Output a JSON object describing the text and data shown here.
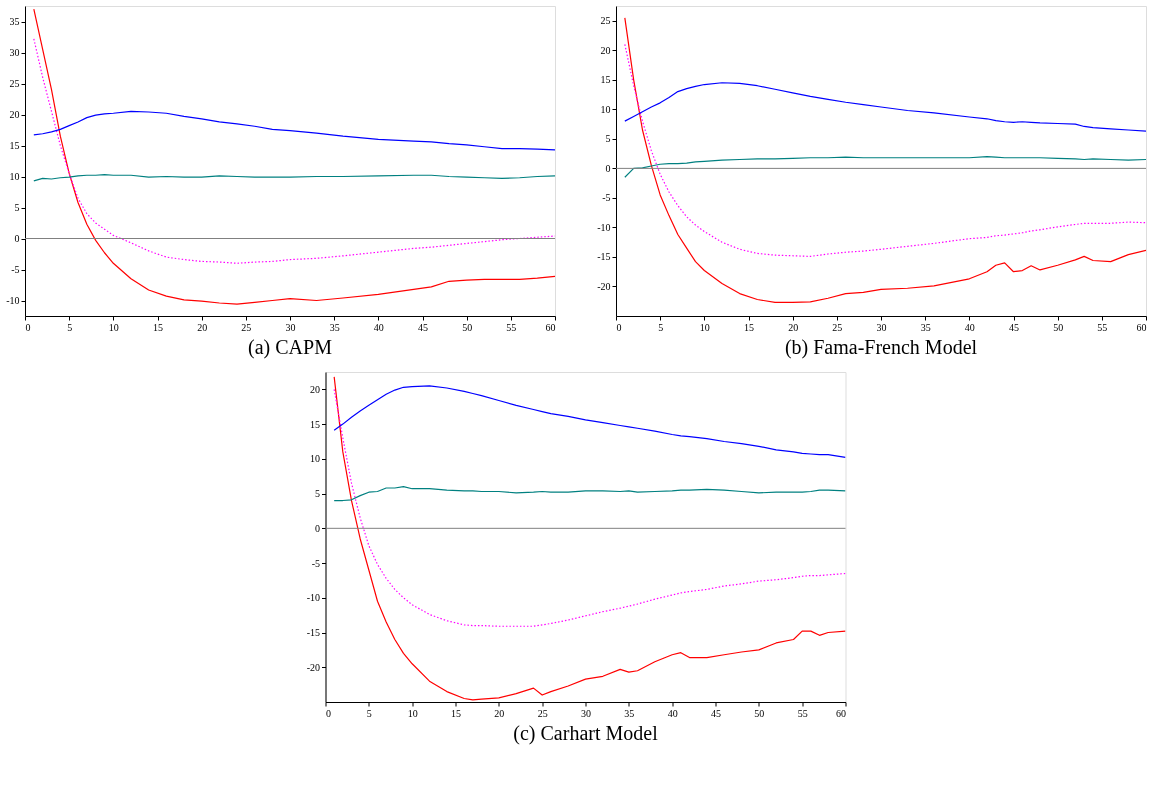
{
  "chart_data": [
    {
      "type": "line",
      "title": "(a) CAPM",
      "xlim": [
        0,
        60
      ],
      "xticks": [
        0,
        5,
        10,
        15,
        20,
        25,
        30,
        35,
        40,
        45,
        50,
        55,
        60
      ],
      "ylim": [
        -12.5,
        37.5
      ],
      "yticks": [
        -10,
        -5,
        0,
        5,
        10,
        15,
        20,
        25,
        30,
        35
      ],
      "grid": false,
      "x": [
        1,
        2,
        3,
        4,
        5,
        6,
        7,
        8,
        9,
        10,
        12,
        14,
        16,
        18,
        20,
        22,
        24,
        26,
        28,
        30,
        33,
        36,
        40,
        44,
        46,
        48,
        50,
        52,
        54,
        56,
        58,
        60
      ],
      "ref_lines": [
        {
          "axis": "y",
          "value": 0,
          "color": "#808080"
        }
      ],
      "series": [
        {
          "color": "#ff0000",
          "line_style": "solid",
          "values": [
            37,
            30.5,
            24,
            16.5,
            10.5,
            5.8,
            2.3,
            -0.3,
            -2.3,
            -4,
            -6.5,
            -8.3,
            -9.3,
            -9.9,
            -10.1,
            -10.4,
            -10.6,
            -10.3,
            -10,
            -9.7,
            -10,
            -9.6,
            -9,
            -8.2,
            -7.8,
            -6.9,
            -6.7,
            -6.6,
            -6.6,
            -6.6,
            -6.4,
            -6.1
          ]
        },
        {
          "color": "#ff00ff",
          "line_style": "dotted",
          "values": [
            32.2,
            26,
            20.5,
            15,
            10.5,
            6.5,
            4,
            2.5,
            1.5,
            0.5,
            -0.7,
            -2,
            -3,
            -3.4,
            -3.7,
            -3.8,
            -4,
            -3.8,
            -3.7,
            -3.4,
            -3.2,
            -2.8,
            -2.2,
            -1.6,
            -1.4,
            -1.1,
            -0.8,
            -0.5,
            -0.2,
            0,
            0.2,
            0.4
          ]
        },
        {
          "color": "#0000ff",
          "line_style": "solid",
          "values": [
            16.7,
            16.9,
            17.2,
            17.6,
            18.2,
            18.8,
            19.5,
            19.9,
            20.1,
            20.2,
            20.5,
            20.4,
            20.2,
            19.7,
            19.3,
            18.8,
            18.5,
            18.1,
            17.6,
            17.4,
            17,
            16.5,
            16,
            15.7,
            15.6,
            15.3,
            15.1,
            14.8,
            14.5,
            14.5,
            14.4,
            14.3
          ]
        },
        {
          "color": "#008080",
          "line_style": "solid",
          "values": [
            9.3,
            9.7,
            9.6,
            9.8,
            9.9,
            10.1,
            10.2,
            10.2,
            10.3,
            10.2,
            10.2,
            9.9,
            10,
            9.9,
            9.9,
            10.1,
            10,
            9.9,
            9.9,
            9.9,
            10,
            10,
            10.1,
            10.2,
            10.2,
            10,
            9.9,
            9.8,
            9.7,
            9.8,
            10,
            10.1
          ]
        }
      ]
    },
    {
      "type": "line",
      "title": "(b) Fama-French Model",
      "xlim": [
        0,
        60
      ],
      "xticks": [
        0,
        5,
        10,
        15,
        20,
        25,
        30,
        35,
        40,
        45,
        50,
        55,
        60
      ],
      "ylim": [
        -25,
        27.5
      ],
      "yticks": [
        -20,
        -15,
        -10,
        -5,
        0,
        5,
        10,
        15,
        20,
        25
      ],
      "grid": false,
      "x": [
        1,
        2,
        3,
        4,
        5,
        6,
        7,
        8,
        9,
        10,
        12,
        14,
        16,
        18,
        20,
        22,
        24,
        26,
        28,
        30,
        33,
        36,
        40,
        42,
        43,
        44,
        45,
        46,
        47,
        48,
        50,
        52,
        53,
        54,
        56,
        58,
        60
      ],
      "ref_lines": [
        {
          "axis": "y",
          "value": 0,
          "color": "#808080"
        }
      ],
      "series": [
        {
          "color": "#ff0000",
          "line_style": "solid",
          "values": [
            25.5,
            15,
            6.5,
            0.5,
            -4.5,
            -8,
            -11.2,
            -13.5,
            -15.8,
            -17.3,
            -19.5,
            -21.2,
            -22.2,
            -22.7,
            -22.7,
            -22.6,
            -22,
            -21.2,
            -21,
            -20.5,
            -20.3,
            -19.9,
            -18.7,
            -17.5,
            -16.4,
            -16,
            -17.5,
            -17.3,
            -16.5,
            -17.2,
            -16.4,
            -15.5,
            -14.9,
            -15.6,
            -15.8,
            -14.6,
            -13.9
          ]
        },
        {
          "color": "#ff00ff",
          "line_style": "dotted",
          "values": [
            21,
            14,
            8,
            3,
            -1,
            -4,
            -6.3,
            -8.2,
            -9.6,
            -10.7,
            -12.5,
            -13.7,
            -14.4,
            -14.7,
            -14.8,
            -14.9,
            -14.5,
            -14.2,
            -14,
            -13.7,
            -13.2,
            -12.7,
            -11.9,
            -11.7,
            -11.4,
            -11.3,
            -11.1,
            -10.9,
            -10.6,
            -10.4,
            -9.9,
            -9.5,
            -9.3,
            -9.3,
            -9.3,
            -9.1,
            -9.2
          ]
        },
        {
          "color": "#0000ff",
          "line_style": "solid",
          "values": [
            8,
            8.8,
            9.6,
            10.4,
            11.1,
            12,
            13,
            13.5,
            13.9,
            14.2,
            14.5,
            14.4,
            14,
            13.4,
            12.8,
            12.2,
            11.7,
            11.2,
            10.8,
            10.4,
            9.8,
            9.4,
            8.7,
            8.4,
            8.1,
            7.9,
            7.8,
            7.9,
            7.8,
            7.7,
            7.6,
            7.5,
            7.1,
            6.9,
            6.7,
            6.5,
            6.3
          ]
        },
        {
          "color": "#008080",
          "line_style": "solid",
          "values": [
            -1.5,
            0,
            0.1,
            0.4,
            0.7,
            0.8,
            0.8,
            0.9,
            1.1,
            1.2,
            1.4,
            1.5,
            1.6,
            1.6,
            1.7,
            1.8,
            1.8,
            1.9,
            1.8,
            1.8,
            1.8,
            1.8,
            1.8,
            2,
            1.9,
            1.8,
            1.8,
            1.8,
            1.8,
            1.8,
            1.7,
            1.6,
            1.5,
            1.6,
            1.5,
            1.4,
            1.5
          ]
        }
      ]
    },
    {
      "type": "line",
      "title": "(c) Carhart Model",
      "xlim": [
        0,
        60
      ],
      "xticks": [
        0,
        5,
        10,
        15,
        20,
        25,
        30,
        35,
        40,
        45,
        50,
        55,
        60
      ],
      "ylim": [
        -25,
        22.5
      ],
      "yticks": [
        -20,
        -15,
        -10,
        -5,
        0,
        5,
        10,
        15,
        20
      ],
      "grid": false,
      "x": [
        1,
        2,
        3,
        4,
        5,
        6,
        7,
        8,
        9,
        10,
        12,
        14,
        16,
        17,
        18,
        20,
        22,
        24,
        25,
        26,
        28,
        30,
        32,
        34,
        35,
        36,
        38,
        40,
        41,
        42,
        44,
        46,
        48,
        50,
        52,
        54,
        55,
        56,
        57,
        58,
        60
      ],
      "ref_lines": [
        {
          "axis": "y",
          "value": 0,
          "color": "#808080"
        }
      ],
      "series": [
        {
          "color": "#ff0000",
          "line_style": "solid",
          "values": [
            21.8,
            11,
            4,
            -1.5,
            -6,
            -10.5,
            -13.5,
            -16,
            -18,
            -19.5,
            -22,
            -23.5,
            -24.5,
            -24.7,
            -24.6,
            -24.4,
            -23.8,
            -23,
            -24,
            -23.5,
            -22.7,
            -21.7,
            -21.3,
            -20.3,
            -20.7,
            -20.5,
            -19.2,
            -18.2,
            -17.9,
            -18.6,
            -18.6,
            -18.2,
            -17.8,
            -17.5,
            -16.5,
            -16,
            -14.8,
            -14.8,
            -15.4,
            -15,
            -14.8
          ]
        },
        {
          "color": "#ff00ff",
          "line_style": "dotted",
          "values": [
            20,
            13,
            6.5,
            1.5,
            -2.5,
            -5.2,
            -7.2,
            -8.8,
            -10,
            -11,
            -12.4,
            -13.3,
            -13.9,
            -14,
            -14,
            -14.1,
            -14.1,
            -14.1,
            -13.9,
            -13.7,
            -13.2,
            -12.6,
            -12,
            -11.5,
            -11.2,
            -10.9,
            -10.2,
            -9.6,
            -9.3,
            -9.1,
            -8.8,
            -8.3,
            -8,
            -7.6,
            -7.4,
            -7.1,
            -6.9,
            -6.8,
            -6.8,
            -6.7,
            -6.5
          ]
        },
        {
          "color": "#0000ff",
          "line_style": "solid",
          "values": [
            14.1,
            15,
            16,
            16.9,
            17.7,
            18.5,
            19.3,
            19.9,
            20.3,
            20.4,
            20.5,
            20.2,
            19.7,
            19.4,
            19.1,
            18.4,
            17.7,
            17.1,
            16.8,
            16.5,
            16.1,
            15.6,
            15.2,
            14.8,
            14.6,
            14.4,
            14,
            13.5,
            13.3,
            13.2,
            12.9,
            12.5,
            12.2,
            11.8,
            11.3,
            11,
            10.8,
            10.7,
            10.6,
            10.6,
            10.2
          ]
        },
        {
          "color": "#008080",
          "line_style": "solid",
          "values": [
            4,
            4,
            4.1,
            4.7,
            5.2,
            5.3,
            5.8,
            5.8,
            6,
            5.7,
            5.7,
            5.5,
            5.4,
            5.4,
            5.3,
            5.3,
            5.1,
            5.2,
            5.3,
            5.2,
            5.2,
            5.4,
            5.4,
            5.3,
            5.4,
            5.2,
            5.3,
            5.4,
            5.5,
            5.5,
            5.6,
            5.5,
            5.3,
            5.1,
            5.2,
            5.2,
            5.2,
            5.3,
            5.5,
            5.5,
            5.4
          ]
        }
      ]
    }
  ]
}
